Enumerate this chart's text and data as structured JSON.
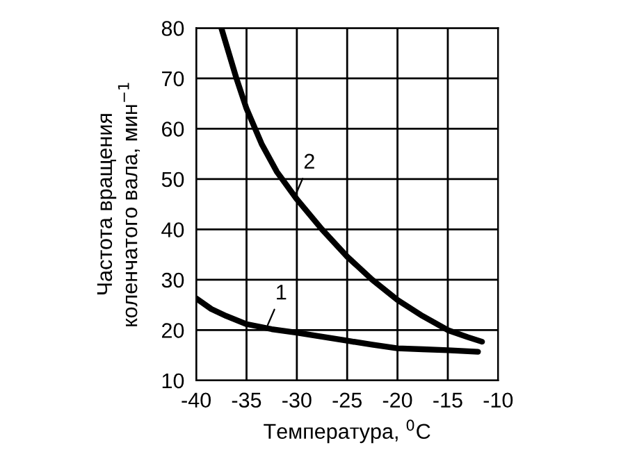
{
  "chart_data": {
    "type": "line",
    "xlabel": "Температура, $^{0}$C",
    "ylabel": "Частота вращения\nколенчатого вала, мин$^{−1}$",
    "xlim": [
      -40,
      -10
    ],
    "ylim": [
      10,
      80
    ],
    "xticks": [
      -40,
      -35,
      -30,
      -25,
      -20,
      -15,
      -10
    ],
    "yticks": [
      10,
      20,
      30,
      40,
      50,
      60,
      70,
      80
    ],
    "grid": true,
    "legend": false,
    "marker": "none",
    "line_style": "solid",
    "series": [
      {
        "color": "#000000",
        "x": [
          -40,
          -38.5,
          -37,
          -35,
          -32.5,
          -30,
          -27.5,
          -25,
          -22.5,
          -20,
          -17.5,
          -15,
          -12
        ],
        "values": [
          26.3,
          24.2,
          22.8,
          21.2,
          20.2,
          19.5,
          18.7,
          17.9,
          17.1,
          16.4,
          16.2,
          16,
          15.7
        ]
      },
      {
        "color": "#000000",
        "x": [
          -37.5,
          -36,
          -35,
          -33.5,
          -32,
          -30,
          -27.5,
          -25,
          -22.5,
          -20,
          -17.5,
          -15,
          -13,
          -11.6
        ],
        "values": [
          80,
          70,
          64,
          57,
          51.5,
          46,
          40,
          34.6,
          30,
          26,
          22.8,
          20,
          18.6,
          17.7
        ]
      }
    ],
    "annotations": [
      {
        "text": "1",
        "x": -32.9,
        "y": 21
      },
      {
        "text": "2",
        "x": -30.1,
        "y": 47
      }
    ]
  }
}
